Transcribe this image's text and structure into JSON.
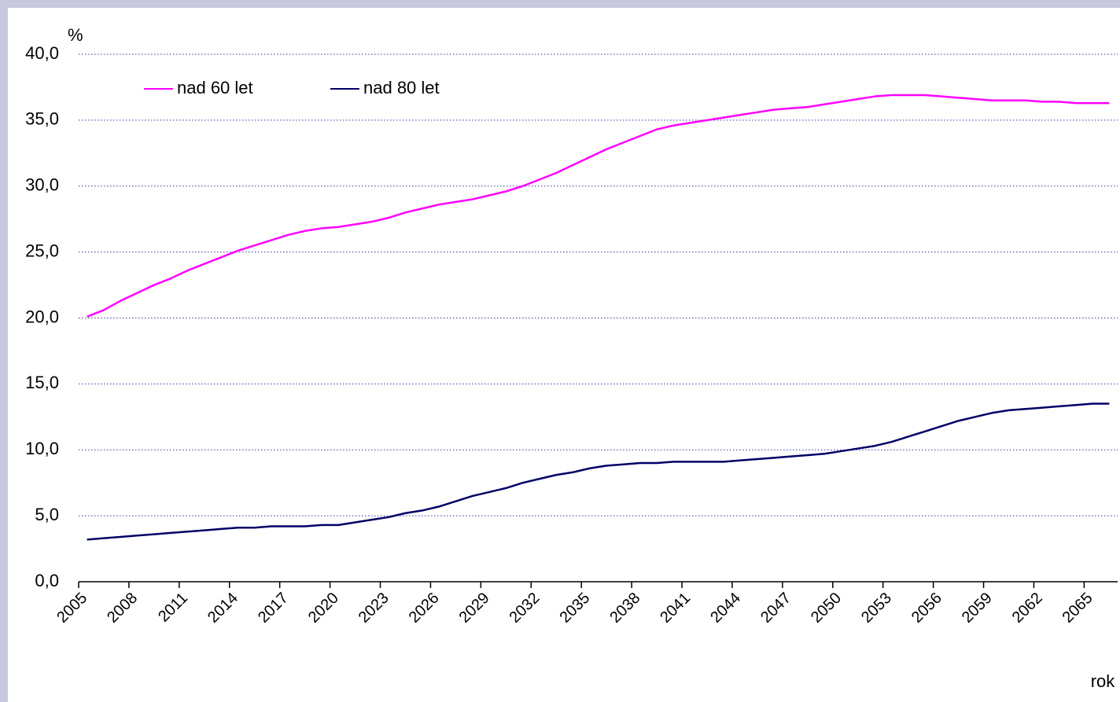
{
  "chart_data": {
    "type": "line",
    "y_label": "%",
    "x_label": "rok",
    "categories": [
      "2005",
      null,
      null,
      "2008",
      null,
      null,
      "2011",
      null,
      null,
      "2014",
      null,
      null,
      "2017",
      null,
      null,
      "2020",
      null,
      null,
      "2023",
      null,
      null,
      "2026",
      null,
      null,
      "2029",
      null,
      null,
      "2032",
      null,
      null,
      "2035",
      null,
      null,
      "2038",
      null,
      null,
      "2041",
      null,
      null,
      "2044",
      null,
      null,
      "2047",
      null,
      null,
      "2050",
      null,
      null,
      "2053",
      null,
      null,
      "2056",
      null,
      null,
      "2059",
      null,
      null,
      "2062",
      null,
      null,
      "2065",
      null
    ],
    "series": [
      {
        "name": "nad 60 let",
        "color": "#ff00ff",
        "values": [
          20.1,
          20.6,
          21.3,
          21.9,
          22.5,
          23.0,
          23.6,
          24.1,
          24.6,
          25.1,
          25.5,
          25.9,
          26.3,
          26.6,
          26.8,
          26.9,
          27.1,
          27.3,
          27.6,
          28.0,
          28.3,
          28.6,
          28.8,
          29.0,
          29.3,
          29.6,
          30.0,
          30.5,
          31.0,
          31.6,
          32.2,
          32.8,
          33.3,
          33.8,
          34.3,
          34.6,
          34.8,
          35.0,
          35.2,
          35.4,
          35.6,
          35.8,
          35.9,
          36.0,
          36.2,
          36.4,
          36.6,
          36.8,
          36.9,
          36.9,
          36.9,
          36.8,
          36.7,
          36.6,
          36.5,
          36.5,
          36.5,
          36.4,
          36.4,
          36.3,
          36.3,
          36.3
        ]
      },
      {
        "name": "nad 80 let",
        "color": "#000066",
        "values": [
          3.2,
          3.3,
          3.4,
          3.5,
          3.6,
          3.7,
          3.8,
          3.9,
          4.0,
          4.1,
          4.1,
          4.2,
          4.2,
          4.2,
          4.3,
          4.3,
          4.5,
          4.7,
          4.9,
          5.2,
          5.4,
          5.7,
          6.1,
          6.5,
          6.8,
          7.1,
          7.5,
          7.8,
          8.1,
          8.3,
          8.6,
          8.8,
          8.9,
          9.0,
          9.0,
          9.1,
          9.1,
          9.1,
          9.1,
          9.2,
          9.3,
          9.4,
          9.5,
          9.6,
          9.7,
          9.9,
          10.1,
          10.3,
          10.6,
          11.0,
          11.4,
          11.8,
          12.2,
          12.5,
          12.8,
          13.0,
          13.1,
          13.2,
          13.3,
          13.4,
          13.5,
          13.5
        ]
      }
    ],
    "ylim": [
      0,
      40
    ],
    "yticks": [
      {
        "value": 0,
        "label": "0,0"
      },
      {
        "value": 5,
        "label": "5,0"
      },
      {
        "value": 10,
        "label": "10,0"
      },
      {
        "value": 15,
        "label": "15,0"
      },
      {
        "value": 20,
        "label": "20,0"
      },
      {
        "value": 25,
        "label": "25,0"
      },
      {
        "value": 30,
        "label": "30,0"
      },
      {
        "value": 35,
        "label": "35,0"
      },
      {
        "value": 40,
        "label": "40,0"
      }
    ],
    "grid": true,
    "legend": "top-left"
  }
}
